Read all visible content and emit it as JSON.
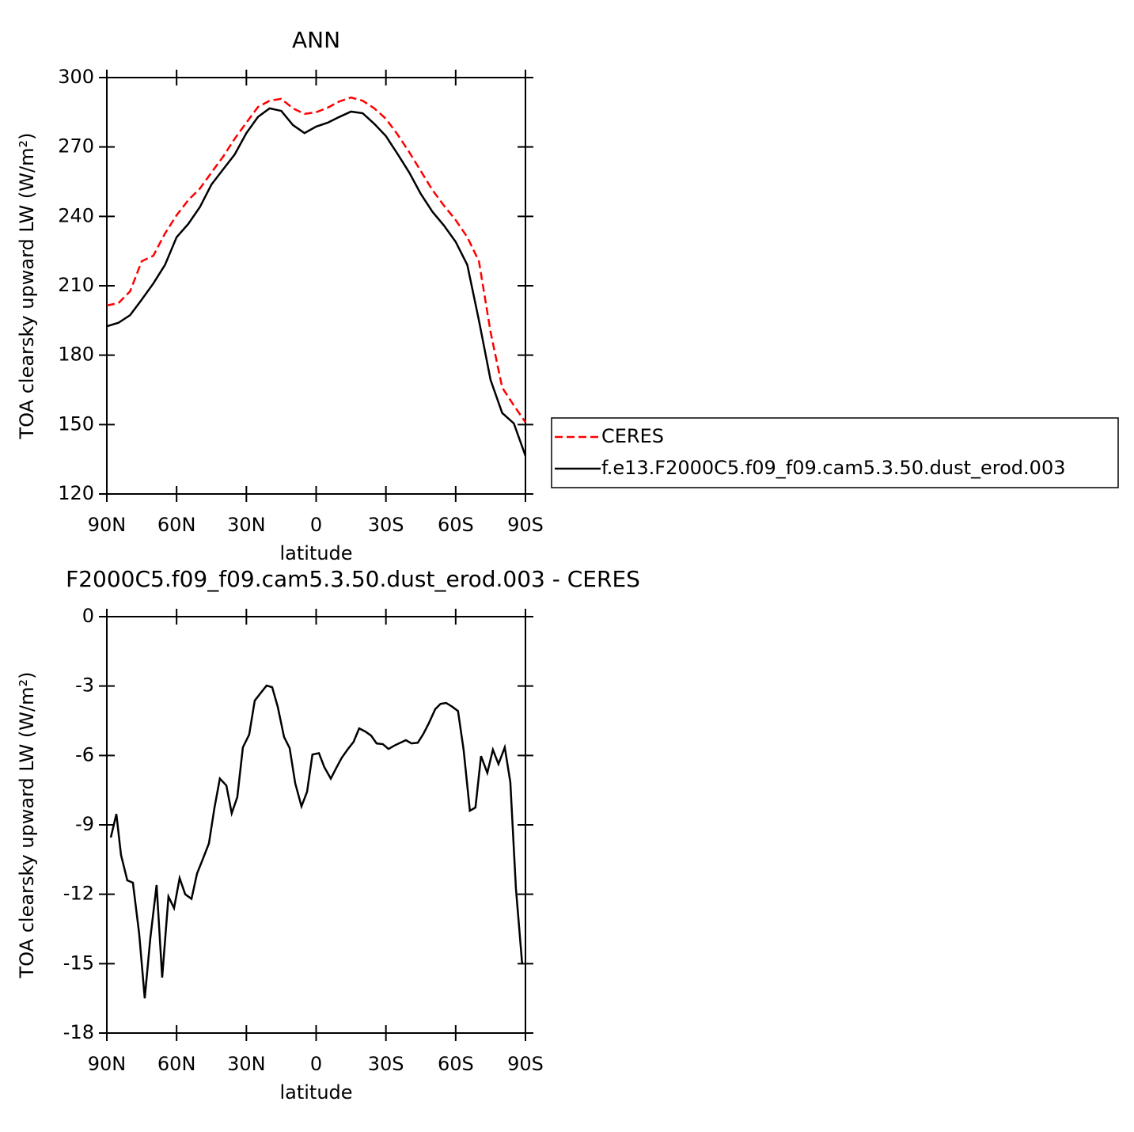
{
  "chart_data": [
    {
      "type": "line",
      "title": "ANN",
      "xlabel": "latitude",
      "ylabel": "TOA clearsky upward LW (W/m²)",
      "x": [
        90,
        85,
        80,
        75,
        70,
        65,
        60,
        55,
        50,
        45,
        40,
        35,
        30,
        25,
        20,
        15,
        10,
        5,
        0,
        -5,
        -10,
        -15,
        -20,
        -25,
        -30,
        -35,
        -40,
        -45,
        -50,
        -55,
        -60,
        -65,
        -70,
        -75,
        -80,
        -85,
        -90
      ],
      "series": [
        {
          "name": "CERES",
          "color": "#ff0000",
          "linestyle": "dashed",
          "values": [
            201.5,
            202.5,
            207.6,
            220.6,
            223,
            232.6,
            240.5,
            247,
            252,
            259,
            265.8,
            273.6,
            280.5,
            287.3,
            290,
            290.8,
            286.7,
            284.3,
            285,
            287,
            289.7,
            291.4,
            290,
            286.7,
            282.2,
            275.4,
            267.8,
            259.6,
            251.4,
            244.6,
            238.4,
            231,
            220.6,
            190,
            166,
            158.3,
            151
          ]
        },
        {
          "name": "f.e13.F2000C5.f09_f09.cam5.3.50.dust_erod.003",
          "color": "#000000",
          "linestyle": "solid",
          "values": [
            192.5,
            194,
            197.3,
            204,
            211,
            219,
            231,
            236.7,
            244,
            253.8,
            260.3,
            266.8,
            276,
            283,
            286.7,
            285.6,
            279.5,
            276,
            278.8,
            280.5,
            283,
            285.3,
            284.6,
            280,
            274.7,
            267,
            259,
            249.7,
            242,
            236,
            229,
            219,
            195,
            169.3,
            155,
            150.5,
            136.5
          ]
        }
      ],
      "xlim": [
        90,
        -90
      ],
      "xticks": [
        {
          "value": 90,
          "label": "90N"
        },
        {
          "value": 60,
          "label": "60N"
        },
        {
          "value": 30,
          "label": "30N"
        },
        0,
        {
          "value": -30,
          "label": "30S"
        },
        {
          "value": -60,
          "label": "60S"
        },
        {
          "value": -90,
          "label": "90S"
        }
      ],
      "ylim": [
        120,
        300
      ],
      "yticks": [
        120,
        150,
        180,
        210,
        240,
        270,
        300
      ],
      "legend": "right"
    },
    {
      "type": "line",
      "title": "F2000C5.f09_f09.cam5.3.50.dust_erod.003 - CERES",
      "xlabel": "latitude",
      "ylabel": "TOA clearsky upward LW (W/m²)",
      "x": [
        88.3,
        85.9,
        83.9,
        81.2,
        78.8,
        76.1,
        73.7,
        71.3,
        68.6,
        66.2,
        63.5,
        61.1,
        58.7,
        56.3,
        53.6,
        51.2,
        48.8,
        46.1,
        43.7,
        41.4,
        38.6,
        36.3,
        33.9,
        31.5,
        28.8,
        26.4,
        24,
        21.3,
        18.9,
        16.5,
        13.8,
        11.4,
        9,
        6.3,
        3.9,
        1.6,
        -1.2,
        -3.5,
        -6.3,
        -8.6,
        -11,
        -13.7,
        -16.1,
        -18.5,
        -21.2,
        -23.6,
        -26,
        -28.7,
        -31.1,
        -33.5,
        -36.2,
        -38.6,
        -41,
        -43.7,
        -46.1,
        -48.4,
        -51.2,
        -53.5,
        -55.9,
        -58.6,
        -61,
        -63.4,
        -66.1,
        -68.5,
        -70.9,
        -73.6,
        -76,
        -78.4,
        -81.1,
        -83.5,
        -85.9,
        -88.6
      ],
      "series": [
        {
          "color": "#000000",
          "linestyle": "solid",
          "values": [
            -9.55,
            -8.53,
            -10.3,
            -11.4,
            -11.5,
            -13.7,
            -16.5,
            -13.9,
            -11.6,
            -15.6,
            -12.1,
            -12.6,
            -11.3,
            -12,
            -12.2,
            -11.1,
            -10.5,
            -9.8,
            -8.25,
            -7,
            -7.3,
            -8.5,
            -7.8,
            -5.65,
            -5.1,
            -3.63,
            -3.32,
            -2.98,
            -3.05,
            -3.9,
            -5.2,
            -5.68,
            -7.2,
            -8.2,
            -7.57,
            -5.96,
            -5.9,
            -6.5,
            -7,
            -6.55,
            -6.1,
            -5.72,
            -5.41,
            -4.83,
            -4.97,
            -5.14,
            -5.48,
            -5.51,
            -5.72,
            -5.58,
            -5.45,
            -5.34,
            -5.48,
            -5.45,
            -5.07,
            -4.62,
            -4,
            -3.77,
            -3.73,
            -3.9,
            -4.08,
            -5.75,
            -8.39,
            -8.25,
            -6.03,
            -6.75,
            -5.75,
            -6.37,
            -5.65,
            -7.16,
            -11.75,
            -15.03
          ]
        }
      ],
      "xlim": [
        90,
        -90
      ],
      "xticks": [
        {
          "value": 90,
          "label": "90N"
        },
        {
          "value": 60,
          "label": "60N"
        },
        {
          "value": 30,
          "label": "30N"
        },
        0,
        {
          "value": -30,
          "label": "30S"
        },
        {
          "value": -60,
          "label": "60S"
        },
        {
          "value": -90,
          "label": "90S"
        }
      ],
      "ylim": [
        -18,
        0
      ],
      "yticks": [
        -18,
        -15,
        -12,
        -9,
        -6,
        -3,
        0
      ]
    }
  ]
}
